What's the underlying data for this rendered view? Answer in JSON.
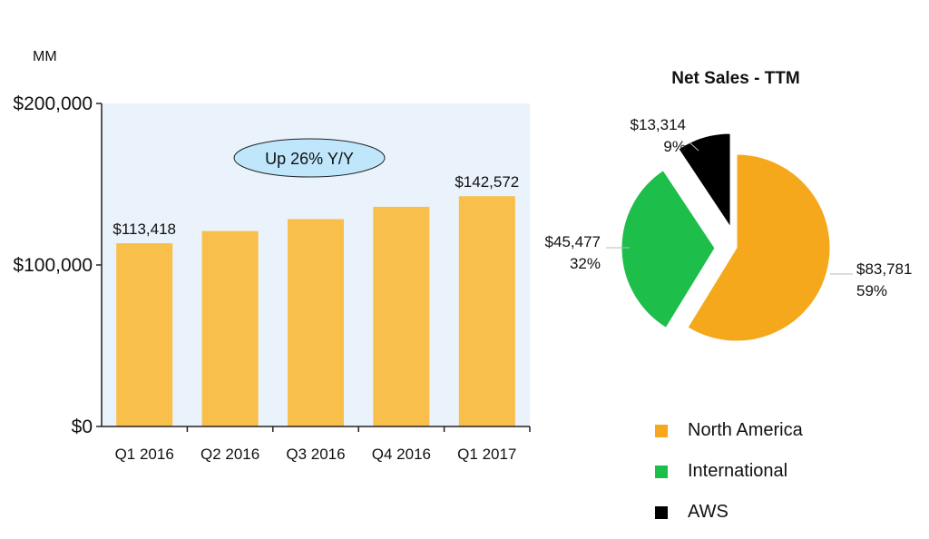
{
  "chart_data": [
    {
      "type": "bar",
      "unit_label": "MM",
      "categories": [
        "Q1 2016",
        "Q2 2016",
        "Q3 2016",
        "Q4 2016",
        "Q1 2017"
      ],
      "values": [
        113418,
        121000,
        128400,
        136000,
        142572
      ],
      "data_labels": [
        "$113,418",
        "",
        "",
        "",
        "$142,572"
      ],
      "ylim": [
        0,
        200000
      ],
      "yticks": [
        0,
        100000,
        200000
      ],
      "ytick_labels": [
        "$0",
        "$100,000",
        "$200,000"
      ],
      "annotation": "Up 26% Y/Y",
      "bar_color": "#F9BF4B",
      "background_color": "#EAF2FB",
      "grid": false
    },
    {
      "type": "pie",
      "title": "Net Sales - TTM",
      "slices": [
        {
          "name": "North America",
          "value": 83781,
          "value_label": "$83,781",
          "percent_label": "59%",
          "color": "#F5A81C"
        },
        {
          "name": "International",
          "value": 45477,
          "value_label": "$45,477",
          "percent_label": "32%",
          "color": "#1EBE4B"
        },
        {
          "name": "AWS",
          "value": 13314,
          "value_label": "$13,314",
          "percent_label": "9%",
          "color": "#000000"
        }
      ],
      "legend_position": "bottom"
    }
  ]
}
